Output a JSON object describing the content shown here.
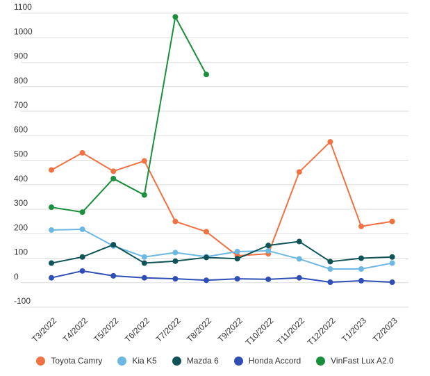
{
  "chart_data": {
    "type": "line",
    "title": "",
    "xlabel": "",
    "ylabel": "",
    "categories": [
      "T3/2022",
      "T4/2022",
      "T5/2022",
      "T6/2022",
      "T7/2022",
      "T8/2022",
      "T9/2022",
      "T10/2022",
      "T11/2022",
      "T12/2022",
      "T1/2023",
      "T2/2023"
    ],
    "ylim": [
      -100,
      1100
    ],
    "yticks": [
      -100,
      0,
      100,
      200,
      300,
      400,
      500,
      600,
      700,
      800,
      900,
      1000,
      1100
    ],
    "grid": true,
    "legend_position": "bottom",
    "series": [
      {
        "name": "Toyota Camry",
        "color": "#f07142",
        "values": [
          460,
          530,
          455,
          497,
          250,
          208,
          110,
          118,
          452,
          575,
          230,
          250
        ]
      },
      {
        "name": "Kia K5",
        "color": "#6cb8e3",
        "values": [
          215,
          218,
          150,
          105,
          123,
          106,
          127,
          130,
          97,
          56,
          56,
          80
        ]
      },
      {
        "name": "Mazda 6",
        "color": "#0f5257",
        "values": [
          80,
          105,
          155,
          80,
          88,
          103,
          98,
          152,
          168,
          86,
          100,
          105
        ]
      },
      {
        "name": "Honda Accord",
        "color": "#2f4fb6",
        "values": [
          20,
          48,
          28,
          20,
          16,
          10,
          16,
          14,
          20,
          2,
          8,
          2
        ]
      },
      {
        "name": "VinFast Lux A2.0",
        "color": "#1a8f3c",
        "values": [
          308,
          288,
          425,
          358,
          1085,
          850,
          null,
          null,
          null,
          null,
          null,
          null
        ]
      }
    ]
  }
}
